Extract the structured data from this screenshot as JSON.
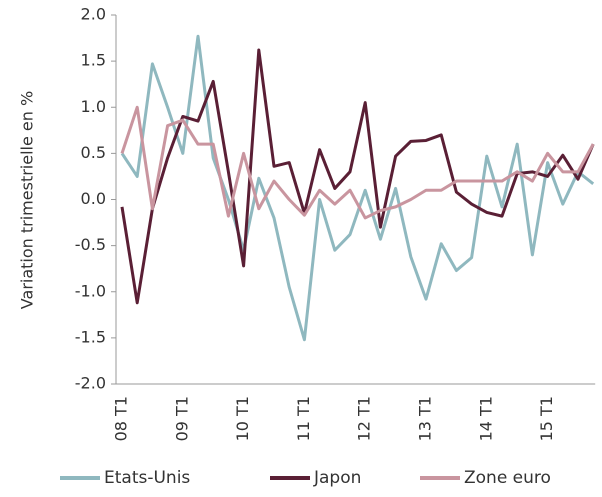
{
  "chart_data": {
    "type": "line",
    "y_label": "Variation trimestrielle en %",
    "categories": [
      "08 T1",
      null,
      null,
      null,
      "09 T1",
      null,
      null,
      null,
      "10 T1",
      null,
      null,
      null,
      "11 T1",
      null,
      null,
      null,
      "12 T1",
      null,
      null,
      null,
      "13 T1",
      null,
      null,
      null,
      "14 T1",
      null,
      null,
      null,
      "15 T1",
      null,
      null,
      null
    ],
    "series": [
      {
        "name": "Etats-Unis",
        "color": "#8fb8bf",
        "values": [
          0.5,
          0.25,
          1.47,
          1.0,
          0.5,
          1.77,
          0.45,
          0.0,
          -0.55,
          0.23,
          -0.2,
          -0.95,
          -1.52,
          0.0,
          -0.55,
          -0.38,
          0.1,
          -0.43,
          0.12,
          -0.62,
          -1.08,
          -0.48,
          -0.77,
          -0.63,
          0.47,
          -0.08,
          0.6,
          -0.6,
          0.4,
          -0.05,
          0.3,
          0.17
        ]
      },
      {
        "name": "Japon",
        "color": "#5a1f35",
        "values": [
          -0.08,
          -1.12,
          -0.1,
          0.45,
          0.9,
          0.85,
          1.28,
          0.3,
          -0.72,
          1.62,
          0.36,
          0.4,
          -0.15,
          0.54,
          0.12,
          0.3,
          1.05,
          -0.3,
          0.47,
          0.63,
          0.64,
          0.7,
          0.08,
          -0.05,
          -0.14,
          -0.18,
          0.28,
          0.3,
          0.25,
          0.48,
          0.22,
          0.6
        ]
      },
      {
        "name": "Zone euro",
        "color": "#c9959f",
        "values": [
          0.5,
          1.0,
          -0.1,
          0.8,
          0.86,
          0.6,
          0.6,
          -0.18,
          0.5,
          -0.1,
          0.2,
          0.0,
          -0.17,
          0.1,
          -0.05,
          0.1,
          -0.2,
          -0.12,
          -0.08,
          0.0,
          0.1,
          0.1,
          0.2,
          0.2,
          0.2,
          0.2,
          0.3,
          0.2,
          0.5,
          0.3,
          0.3,
          0.6
        ]
      }
    ],
    "ylim": [
      -2,
      2
    ],
    "yticks": [
      {
        "value": 2,
        "label": "2.0"
      },
      1.5,
      {
        "value": 1,
        "label": "1.0"
      },
      0.5,
      {
        "value": 0,
        "label": "0.0"
      },
      -0.5,
      {
        "value": -1,
        "label": "-1.0"
      },
      -1.5,
      {
        "value": -2,
        "label": "-2.0"
      }
    ],
    "legend": "bottom"
  }
}
